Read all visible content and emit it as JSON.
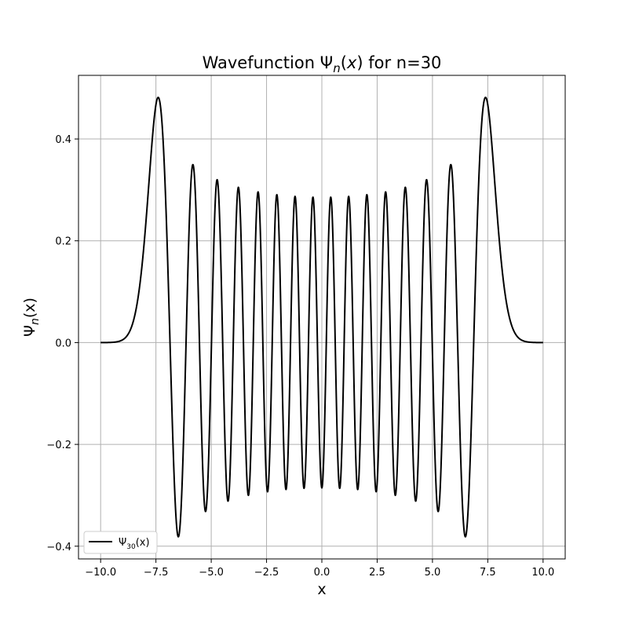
{
  "chart_data": {
    "type": "line",
    "title": "Wavefunction Ψn(x) for n=30",
    "title_main": "Wavefunction Ψ",
    "title_sub": "n",
    "title_rest": "(x) for n=30",
    "xlabel": "x",
    "ylabel_main": "Ψ",
    "ylabel_sub": "n",
    "ylabel_rest": "(x)",
    "xlim": [
      -11.0,
      11.0
    ],
    "ylim": [
      -0.425,
      0.525
    ],
    "x_ticks": [
      -10.0,
      -7.5,
      -5.0,
      -2.5,
      0.0,
      2.5,
      5.0,
      7.5,
      10.0
    ],
    "x_tick_labels": [
      "−10.0",
      "−7.5",
      "−5.0",
      "−2.5",
      "0.0",
      "2.5",
      "5.0",
      "7.5",
      "10.0"
    ],
    "y_ticks": [
      -0.4,
      -0.2,
      0.0,
      0.2,
      0.4
    ],
    "y_tick_labels": [
      "−0.4",
      "−0.2",
      "0.0",
      "0.2",
      "0.4"
    ],
    "grid": true,
    "legend_position": "lower-left",
    "series": [
      {
        "name": "Ψ30(x)",
        "legend_main": "Ψ",
        "legend_sub": "30",
        "legend_rest": "(x)",
        "color": "#000000",
        "n": 30,
        "x_range": [
          -10.0,
          10.0
        ]
      }
    ]
  }
}
